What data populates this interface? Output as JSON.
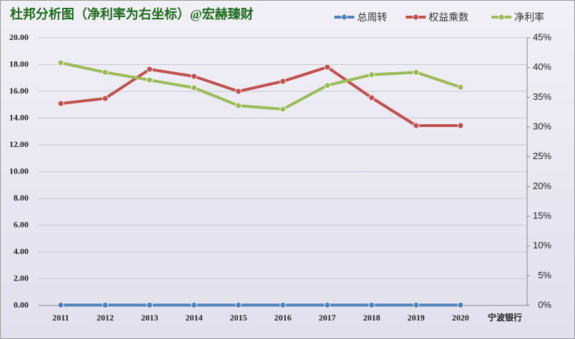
{
  "chart_data": {
    "type": "line",
    "title": "杜邦分析图（净利率为右坐标）@宏赫臻财",
    "categories": [
      "2011",
      "2012",
      "2013",
      "2014",
      "2015",
      "2016",
      "2017",
      "2018",
      "2019",
      "2020",
      "宁波银行"
    ],
    "series": [
      {
        "name": "总周转",
        "color": "#4f81bd",
        "values": [
          0.03,
          0.03,
          0.03,
          0.03,
          0.03,
          0.03,
          0.03,
          0.03,
          0.03,
          0.03,
          null
        ]
      },
      {
        "name": "权益乘数",
        "color": "#c0504d",
        "values": [
          15.09,
          15.47,
          17.65,
          17.12,
          16.0,
          16.75,
          17.81,
          15.52,
          13.44,
          13.44,
          null
        ]
      },
      {
        "name": "净利率",
        "color": "#9bbb59",
        "axis": "y2",
        "values": [
          40.8,
          39.2,
          37.9,
          36.6,
          33.6,
          33.0,
          37.0,
          38.8,
          39.2,
          36.7,
          null
        ]
      }
    ],
    "ylim": [
      0,
      20
    ],
    "yticks": [
      {
        "value": 0,
        "label": "0.00"
      },
      {
        "value": 2,
        "label": "2.00"
      },
      {
        "value": 4,
        "label": "4.00"
      },
      {
        "value": 6,
        "label": "6.00"
      },
      {
        "value": 8,
        "label": "8.00"
      },
      {
        "value": 10,
        "label": "10.00"
      },
      {
        "value": 12,
        "label": "12.00"
      },
      {
        "value": 14,
        "label": "14.00"
      },
      {
        "value": 16,
        "label": "16.00"
      },
      {
        "value": 18,
        "label": "18.00"
      },
      {
        "value": 20,
        "label": "20.00"
      }
    ],
    "y2lim": [
      0,
      45
    ],
    "y2ticks": [
      {
        "value": 0,
        "label": "0%"
      },
      {
        "value": 5,
        "label": "5%"
      },
      {
        "value": 10,
        "label": "10%"
      },
      {
        "value": 15,
        "label": "15%"
      },
      {
        "value": 20,
        "label": "20%"
      },
      {
        "value": 25,
        "label": "25%"
      },
      {
        "value": 30,
        "label": "30%"
      },
      {
        "value": 35,
        "label": "35%"
      },
      {
        "value": 40,
        "label": "40%"
      },
      {
        "value": 45,
        "label": "45%"
      }
    ],
    "grid": true
  }
}
